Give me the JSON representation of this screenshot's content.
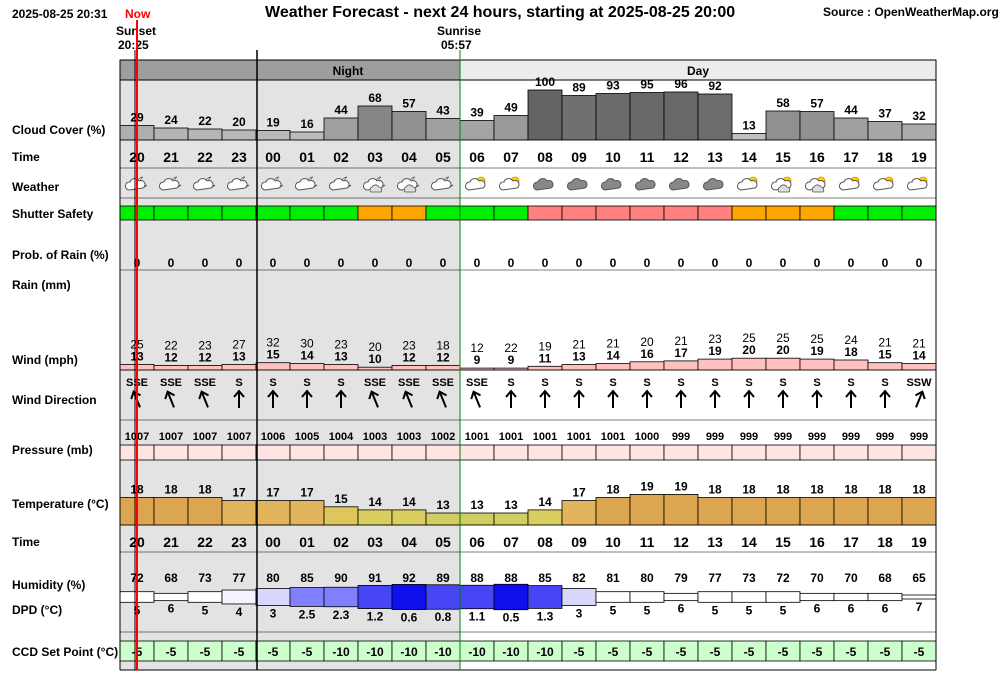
{
  "header": {
    "timestamp": "2025-08-25 20:31",
    "now_label": "Now",
    "title": "Weather Forecast - next 24 hours, starting at 2025-08-25 20:00",
    "source": "Source : OpenWeatherMap.org",
    "sunset_label": "Sunset",
    "sunset_time": "20:25",
    "sunrise_label": "Sunrise",
    "sunrise_time": "05:57",
    "night_label": "Night",
    "day_label": "Day"
  },
  "colors": {
    "night_bg": "#e3e3e3",
    "night_header": "#9e9e9e",
    "day_header": "#ececec",
    "now_line": "#ff0000",
    "shutter_green": "#00ee00",
    "shutter_orange": "#ffa500",
    "shutter_red": "#ff8080",
    "wind_fill": "#ffc0c0",
    "pressure_fill": "#ffe4e4",
    "ccd_fill": "#ccffcc"
  },
  "chart_data": {
    "type": "table",
    "hours": [
      "20",
      "21",
      "22",
      "23",
      "00",
      "01",
      "02",
      "03",
      "04",
      "05",
      "06",
      "07",
      "08",
      "09",
      "10",
      "11",
      "12",
      "13",
      "14",
      "15",
      "16",
      "17",
      "18",
      "19"
    ],
    "night_hours": 10,
    "rows": [
      {
        "label": "Cloud Cover (%)",
        "values": [
          29,
          24,
          22,
          20,
          19,
          16,
          44,
          68,
          57,
          43,
          39,
          49,
          100,
          89,
          93,
          95,
          96,
          92,
          13,
          58,
          57,
          44,
          37,
          32
        ]
      },
      {
        "label": "Time"
      },
      {
        "label": "Weather",
        "icons": [
          "moon-cloud",
          "moon-cloud",
          "moon-cloud",
          "moon-cloud",
          "moon-cloud",
          "moon-cloud",
          "moon-cloud",
          "moon-clouds",
          "moon-clouds",
          "moon-cloud",
          "sun-cloud",
          "sun-cloud",
          "cloud",
          "cloud",
          "cloud",
          "cloud",
          "cloud",
          "cloud",
          "sun-cloud",
          "sun-clouds",
          "sun-clouds",
          "sun-cloud",
          "sun-cloud",
          "sun-cloud"
        ]
      },
      {
        "label": "Shutter Safety",
        "values": [
          "green",
          "green",
          "green",
          "green",
          "green",
          "green",
          "green",
          "orange",
          "orange",
          "green",
          "green",
          "green",
          "red",
          "red",
          "red",
          "red",
          "red",
          "red",
          "orange",
          "orange",
          "orange",
          "green",
          "green",
          "green"
        ]
      },
      {
        "label": "Prob. of Rain (%)",
        "values": [
          0,
          0,
          0,
          0,
          0,
          0,
          0,
          0,
          0,
          0,
          0,
          0,
          0,
          0,
          0,
          0,
          0,
          0,
          0,
          0,
          0,
          0,
          0,
          0
        ]
      },
      {
        "label": "Rain (mm)"
      },
      {
        "label": "Wind (mph)",
        "gusts": [
          25,
          22,
          23,
          27,
          32,
          30,
          23,
          20,
          23,
          18,
          12,
          22,
          19,
          21,
          21,
          20,
          21,
          23,
          25,
          25,
          25,
          24,
          21,
          21
        ],
        "values": [
          13,
          12,
          12,
          13,
          15,
          14,
          13,
          10,
          12,
          12,
          9,
          9,
          11,
          13,
          14,
          16,
          17,
          19,
          20,
          20,
          19,
          18,
          15,
          14
        ]
      },
      {
        "label": "Wind Direction",
        "values": [
          "SSE",
          "SSE",
          "SSE",
          "S",
          "S",
          "S",
          "S",
          "SSE",
          "SSE",
          "SSE",
          "SSE",
          "S",
          "S",
          "S",
          "S",
          "S",
          "S",
          "S",
          "S",
          "S",
          "S",
          "S",
          "S",
          "SSW"
        ]
      },
      {
        "label": "Pressure (mb)",
        "values": [
          1007,
          1007,
          1007,
          1007,
          1006,
          1005,
          1004,
          1003,
          1003,
          1002,
          1001,
          1001,
          1001,
          1001,
          1001,
          1000,
          999,
          999,
          999,
          999,
          999,
          999,
          999,
          999
        ]
      },
      {
        "label": "Temperature (°C)",
        "values": [
          18,
          18,
          18,
          17,
          17,
          17,
          15,
          14,
          14,
          13,
          13,
          13,
          14,
          17,
          18,
          19,
          19,
          18,
          18,
          18,
          18,
          18,
          18,
          18
        ]
      },
      {
        "label": "Time"
      },
      {
        "label": "Humidity (%)",
        "values": [
          72,
          68,
          73,
          77,
          80,
          85,
          90,
          91,
          92,
          89,
          88,
          88,
          85,
          82,
          81,
          80,
          79,
          77,
          73,
          72,
          70,
          70,
          68,
          65
        ]
      },
      {
        "label": "DPD (°C)",
        "values": [
          5,
          6,
          5,
          4,
          3,
          2.5,
          2.3,
          1.2,
          0.6,
          0.8,
          1.1,
          0.5,
          1.3,
          3,
          5,
          5,
          6,
          5,
          5,
          5,
          6,
          6,
          6,
          7
        ]
      },
      {
        "label": "CCD Set Point (°C)",
        "values": [
          -5,
          -5,
          -5,
          -5,
          -5,
          -5,
          -10,
          -10,
          -10,
          -10,
          -10,
          -10,
          -10,
          -5,
          -5,
          -5,
          -5,
          -5,
          -5,
          -5,
          -5,
          -5,
          -5,
          -5
        ]
      }
    ]
  }
}
